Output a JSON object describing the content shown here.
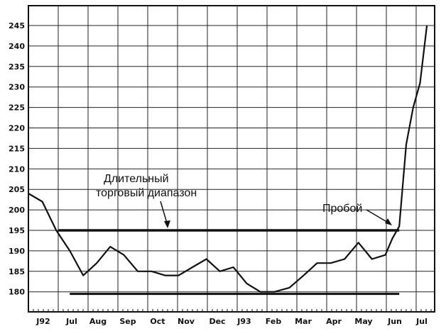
{
  "chart_data": {
    "type": "line",
    "title": "",
    "xlabel": "",
    "ylabel": "",
    "x_tick_labels": [
      "J92",
      "Jul",
      "Aug",
      "Sep",
      "Oct",
      "Nov",
      "Dec",
      "J93",
      "Feb",
      "Mar",
      "Apr",
      "May",
      "Jun",
      "Jul"
    ],
    "y_tick_labels": [
      "245",
      "240",
      "235",
      "230",
      "225",
      "220",
      "215",
      "210",
      "205",
      "200",
      "195",
      "190",
      "185",
      "180"
    ],
    "ylim": [
      175,
      250
    ],
    "grid": true,
    "series": [
      {
        "x": [
          "1992-06-01",
          "1992-06-15",
          "1992-06-29",
          "1992-07-13",
          "1992-07-27",
          "1992-08-10",
          "1992-08-24",
          "1992-09-07",
          "1992-09-21",
          "1992-10-05",
          "1992-10-19",
          "1992-11-02",
          "1992-11-16",
          "1992-11-30",
          "1992-12-14",
          "1992-12-28",
          "1993-01-11",
          "1993-01-25",
          "1993-02-08",
          "1993-02-22",
          "1993-03-08",
          "1993-03-22",
          "1993-04-05",
          "1993-04-19",
          "1993-05-03",
          "1993-05-17",
          "1993-05-31",
          "1993-06-07",
          "1993-06-14",
          "1993-06-21",
          "1993-06-28",
          "1993-07-05",
          "1993-07-12"
        ],
        "values": [
          204,
          202,
          195,
          190,
          184,
          187,
          191,
          189,
          185,
          185,
          184,
          184,
          186,
          188,
          185,
          186,
          182,
          180,
          180,
          181,
          184,
          187,
          187,
          188,
          192,
          188,
          189,
          193,
          196,
          216,
          225,
          231,
          245
        ]
      }
    ],
    "annotations": [
      {
        "text_lines": [
          "Длительный",
          "торговый диапазон"
        ]
      },
      {
        "text": "Пробой"
      }
    ],
    "reference_lines": [
      {
        "y": 195,
        "from": "1992-07-01",
        "to": "1993-06-14"
      },
      {
        "y": 179.5,
        "from": "1992-07-13",
        "to": "1993-06-14"
      }
    ]
  },
  "colors": {
    "ink": "#111111",
    "background": "#ffffff",
    "grid": "#222222"
  }
}
